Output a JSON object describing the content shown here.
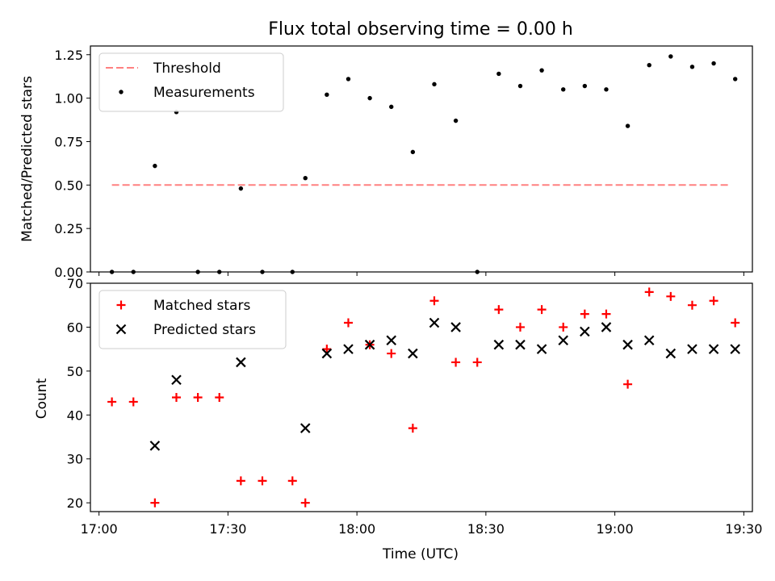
{
  "chart_data": [
    {
      "type": "scatter",
      "title": "Flux total observing time = 0.00 h",
      "xlabel": "",
      "ylabel": "Matched/Predicted stars",
      "xlim": [
        "16:58",
        "19:32"
      ],
      "ylim": [
        0,
        1.3
      ],
      "yticks": [
        "0.00",
        "0.25",
        "0.50",
        "0.75",
        "1.00",
        "1.25"
      ],
      "grid": false,
      "legend_position": "top-left",
      "threshold": {
        "name": "Threshold",
        "value": 0.5,
        "x_range": [
          "17:03",
          "19:27"
        ],
        "color": "#ff8080"
      },
      "series": [
        {
          "name": "Measurements",
          "color": "#000000",
          "marker": "dot",
          "points": [
            [
              "17:03",
              0.0
            ],
            [
              "17:08",
              0.0
            ],
            [
              "17:13",
              0.61
            ],
            [
              "17:18",
              0.92
            ],
            [
              "17:23",
              0.0
            ],
            [
              "17:28",
              0.0
            ],
            [
              "17:33",
              0.48
            ],
            [
              "17:38",
              0.0
            ],
            [
              "17:45",
              0.0
            ],
            [
              "17:48",
              0.54
            ],
            [
              "17:53",
              1.02
            ],
            [
              "17:58",
              1.11
            ],
            [
              "18:03",
              1.0
            ],
            [
              "18:08",
              0.95
            ],
            [
              "18:13",
              0.69
            ],
            [
              "18:18",
              1.08
            ],
            [
              "18:23",
              0.87
            ],
            [
              "18:28",
              0.0
            ],
            [
              "18:33",
              1.14
            ],
            [
              "18:38",
              1.07
            ],
            [
              "18:43",
              1.16
            ],
            [
              "18:48",
              1.05
            ],
            [
              "18:53",
              1.07
            ],
            [
              "18:58",
              1.05
            ],
            [
              "19:03",
              0.84
            ],
            [
              "19:08",
              1.19
            ],
            [
              "19:13",
              1.24
            ],
            [
              "19:18",
              1.18
            ],
            [
              "19:23",
              1.2
            ],
            [
              "19:28",
              1.11
            ]
          ]
        }
      ]
    },
    {
      "type": "scatter",
      "title": "",
      "xlabel": "Time (UTC)",
      "ylabel": "Count",
      "xlim": [
        "16:58",
        "19:32"
      ],
      "ylim": [
        18,
        70
      ],
      "yticks": [
        "20",
        "30",
        "40",
        "50",
        "60",
        "70"
      ],
      "xticks": [
        "17:00",
        "17:30",
        "18:00",
        "18:30",
        "19:00",
        "19:30"
      ],
      "grid": false,
      "legend_position": "top-left",
      "series": [
        {
          "name": "Matched stars",
          "color": "#ff0000",
          "marker": "plus",
          "points": [
            [
              "17:03",
              43
            ],
            [
              "17:08",
              43
            ],
            [
              "17:13",
              20
            ],
            [
              "17:18",
              44
            ],
            [
              "17:23",
              44
            ],
            [
              "17:28",
              44
            ],
            [
              "17:33",
              25
            ],
            [
              "17:38",
              25
            ],
            [
              "17:45",
              25
            ],
            [
              "17:48",
              20
            ],
            [
              "17:53",
              55
            ],
            [
              "17:58",
              61
            ],
            [
              "18:03",
              56
            ],
            [
              "18:08",
              54
            ],
            [
              "18:13",
              37
            ],
            [
              "18:18",
              66
            ],
            [
              "18:23",
              52
            ],
            [
              "18:28",
              52
            ],
            [
              "18:33",
              64
            ],
            [
              "18:38",
              60
            ],
            [
              "18:43",
              64
            ],
            [
              "18:48",
              60
            ],
            [
              "18:53",
              63
            ],
            [
              "18:58",
              63
            ],
            [
              "19:03",
              47
            ],
            [
              "19:08",
              68
            ],
            [
              "19:13",
              67
            ],
            [
              "19:18",
              65
            ],
            [
              "19:23",
              66
            ],
            [
              "19:28",
              61
            ]
          ]
        },
        {
          "name": "Predicted stars",
          "color": "#000000",
          "marker": "x",
          "points": [
            [
              "17:13",
              33
            ],
            [
              "17:18",
              48
            ],
            [
              "17:33",
              52
            ],
            [
              "17:48",
              37
            ],
            [
              "17:53",
              54
            ],
            [
              "17:58",
              55
            ],
            [
              "18:03",
              56
            ],
            [
              "18:08",
              57
            ],
            [
              "18:13",
              54
            ],
            [
              "18:18",
              61
            ],
            [
              "18:23",
              60
            ],
            [
              "18:33",
              56
            ],
            [
              "18:38",
              56
            ],
            [
              "18:43",
              55
            ],
            [
              "18:48",
              57
            ],
            [
              "18:53",
              59
            ],
            [
              "18:58",
              60
            ],
            [
              "19:03",
              56
            ],
            [
              "19:08",
              57
            ],
            [
              "19:13",
              54
            ],
            [
              "19:18",
              55
            ],
            [
              "19:23",
              55
            ],
            [
              "19:28",
              55
            ]
          ]
        }
      ]
    }
  ]
}
